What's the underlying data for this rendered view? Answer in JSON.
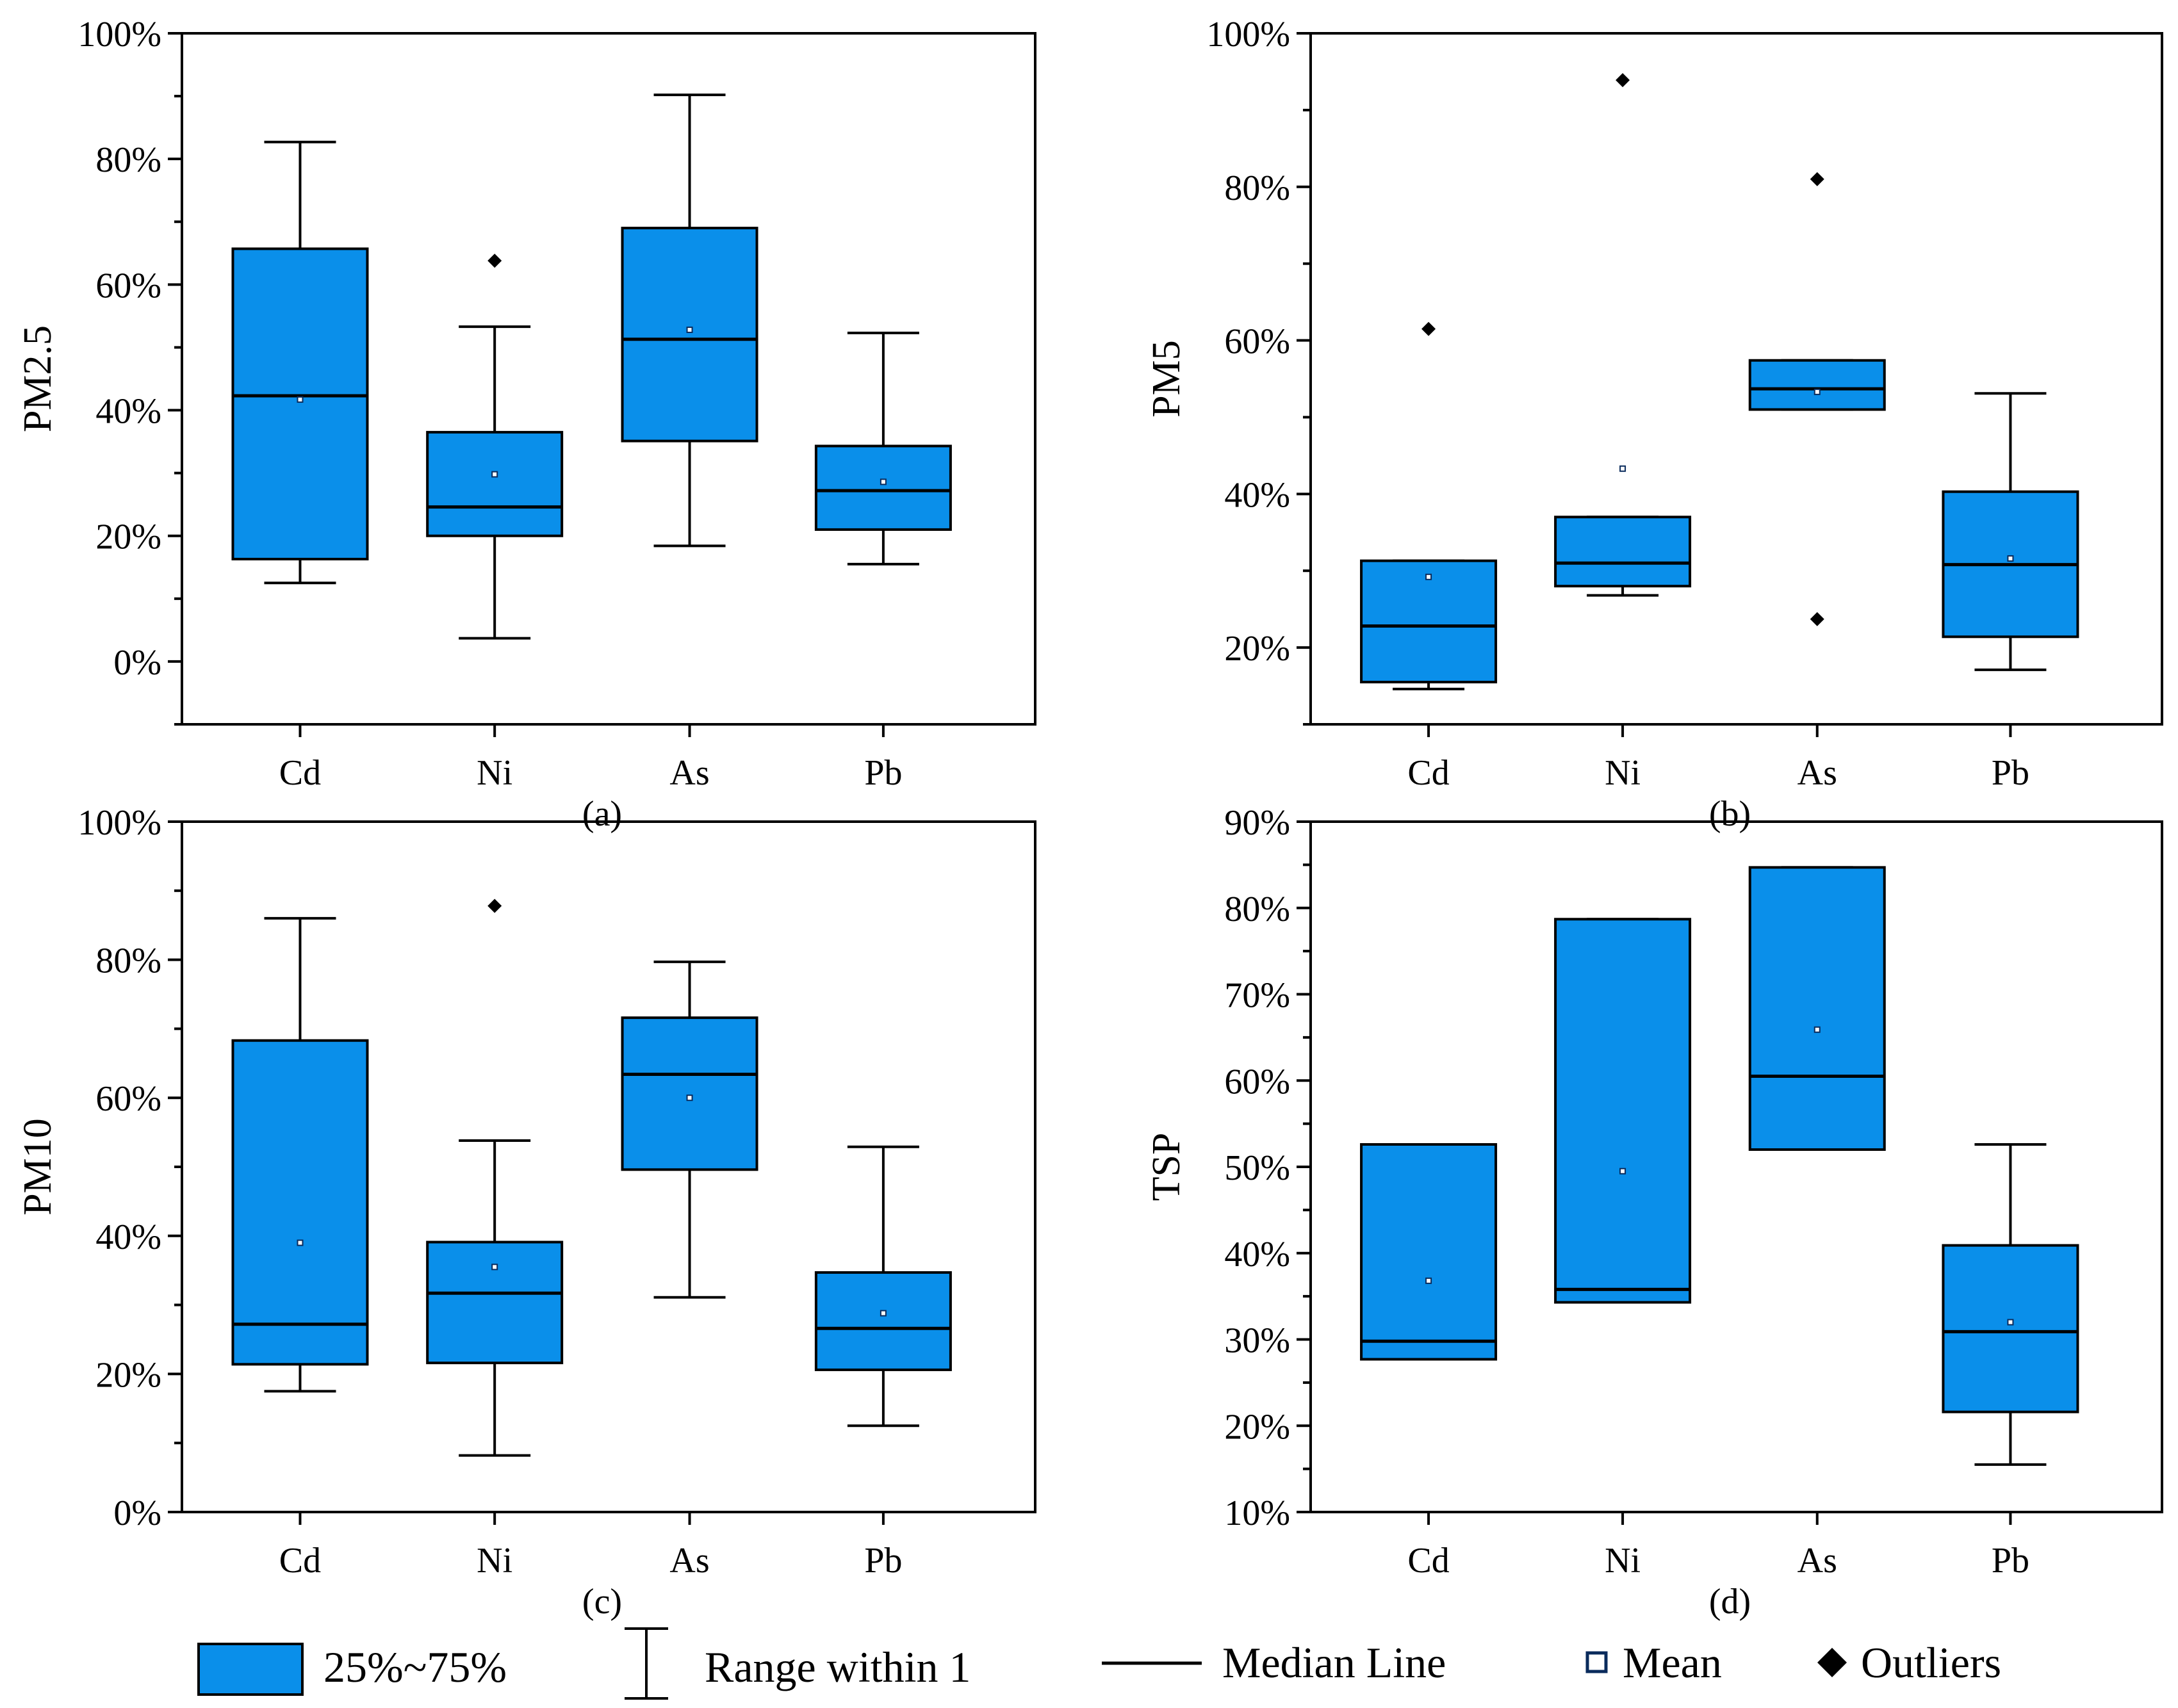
{
  "colors": {
    "box_fill": "#0A8FEA",
    "stroke": "#000000",
    "mean_marker": "#0A2B5C",
    "background": "#FFFFFF"
  },
  "legend": {
    "box_label": "25%~75%",
    "whisker_label": "Range within 1",
    "median_label": "Median Line",
    "mean_label": "Mean",
    "outlier_label": "Outliers"
  },
  "chart_data": [
    {
      "id": "a",
      "type": "box",
      "panel_label": "(a)",
      "ylabel": "PM2.5",
      "xlabel": "",
      "ylim": [
        -0.1,
        1.0
      ],
      "yticks": [
        0,
        0.2,
        0.4,
        0.6,
        0.8,
        1.0
      ],
      "ytick_labels": [
        "0%",
        "20%",
        "40%",
        "60%",
        "80%",
        "100%"
      ],
      "categories": [
        "Cd",
        "Ni",
        "As",
        "Pb"
      ],
      "boxes": [
        {
          "category": "Cd",
          "whisker_low": 0.125,
          "q1": 0.163,
          "median": 0.423,
          "q3": 0.657,
          "whisker_high": 0.827,
          "mean": 0.417,
          "outliers": []
        },
        {
          "category": "Ni",
          "whisker_low": 0.037,
          "q1": 0.2,
          "median": 0.246,
          "q3": 0.365,
          "whisker_high": 0.533,
          "mean": 0.298,
          "outliers": [
            0.638
          ]
        },
        {
          "category": "As",
          "whisker_low": 0.184,
          "q1": 0.351,
          "median": 0.513,
          "q3": 0.69,
          "whisker_high": 0.902,
          "mean": 0.528,
          "outliers": []
        },
        {
          "category": "Pb",
          "whisker_low": 0.155,
          "q1": 0.21,
          "median": 0.272,
          "q3": 0.343,
          "whisker_high": 0.523,
          "mean": 0.286,
          "outliers": []
        }
      ]
    },
    {
      "id": "b",
      "type": "box",
      "panel_label": "(b)",
      "ylabel": "PM5",
      "xlabel": "",
      "ylim": [
        0.1,
        1.0
      ],
      "yticks": [
        0.2,
        0.4,
        0.6,
        0.8,
        1.0
      ],
      "ytick_labels": [
        "20%",
        "40%",
        "60%",
        "80%",
        "100%"
      ],
      "categories": [
        "Cd",
        "Ni",
        "As",
        "Pb"
      ],
      "boxes": [
        {
          "category": "Cd",
          "whisker_low": 0.146,
          "q1": 0.155,
          "median": 0.228,
          "q3": 0.313,
          "whisker_high": 0.313,
          "mean": 0.292,
          "outliers": [
            0.615
          ]
        },
        {
          "category": "Ni",
          "whisker_low": 0.268,
          "q1": 0.28,
          "median": 0.31,
          "q3": 0.37,
          "whisker_high": 0.37,
          "mean": 0.433,
          "outliers": [
            0.939
          ]
        },
        {
          "category": "As",
          "whisker_low": 0.51,
          "q1": 0.51,
          "median": 0.537,
          "q3": 0.574,
          "whisker_high": 0.574,
          "mean": 0.533,
          "outliers": [
            0.81,
            0.237
          ]
        },
        {
          "category": "Pb",
          "whisker_low": 0.171,
          "q1": 0.214,
          "median": 0.308,
          "q3": 0.403,
          "whisker_high": 0.531,
          "mean": 0.316,
          "outliers": []
        }
      ]
    },
    {
      "id": "c",
      "type": "box",
      "panel_label": "(c)",
      "ylabel": "PM10",
      "xlabel": "",
      "ylim": [
        0.0,
        1.0
      ],
      "yticks": [
        0,
        0.2,
        0.4,
        0.6,
        0.8,
        1.0
      ],
      "ytick_labels": [
        "0%",
        "20%",
        "40%",
        "60%",
        "80%",
        "100%"
      ],
      "categories": [
        "Cd",
        "Ni",
        "As",
        "Pb"
      ],
      "boxes": [
        {
          "category": "Cd",
          "whisker_low": 0.175,
          "q1": 0.214,
          "median": 0.272,
          "q3": 0.683,
          "whisker_high": 0.86,
          "mean": 0.39,
          "outliers": []
        },
        {
          "category": "Ni",
          "whisker_low": 0.082,
          "q1": 0.216,
          "median": 0.317,
          "q3": 0.391,
          "whisker_high": 0.538,
          "mean": 0.355,
          "outliers": [
            0.878
          ]
        },
        {
          "category": "As",
          "whisker_low": 0.311,
          "q1": 0.496,
          "median": 0.634,
          "q3": 0.716,
          "whisker_high": 0.797,
          "mean": 0.6,
          "outliers": []
        },
        {
          "category": "Pb",
          "whisker_low": 0.125,
          "q1": 0.206,
          "median": 0.266,
          "q3": 0.347,
          "whisker_high": 0.529,
          "mean": 0.288,
          "outliers": []
        }
      ]
    },
    {
      "id": "d",
      "type": "box",
      "panel_label": "(d)",
      "ylabel": "TSP",
      "xlabel": "",
      "ylim": [
        0.1,
        0.9
      ],
      "yticks": [
        0.1,
        0.2,
        0.3,
        0.4,
        0.5,
        0.6,
        0.7,
        0.8,
        0.9
      ],
      "ytick_labels": [
        "10%",
        "20%",
        "30%",
        "40%",
        "50%",
        "60%",
        "70%",
        "80%",
        "90%"
      ],
      "categories": [
        "Cd",
        "Ni",
        "As",
        "Pb"
      ],
      "boxes": [
        {
          "category": "Cd",
          "whisker_low": 0.277,
          "q1": 0.277,
          "median": 0.298,
          "q3": 0.526,
          "whisker_high": 0.526,
          "mean": 0.368,
          "outliers": []
        },
        {
          "category": "Ni",
          "whisker_low": 0.343,
          "q1": 0.343,
          "median": 0.358,
          "q3": 0.787,
          "whisker_high": 0.787,
          "mean": 0.495,
          "outliers": []
        },
        {
          "category": "As",
          "whisker_low": 0.52,
          "q1": 0.52,
          "median": 0.605,
          "q3": 0.847,
          "whisker_high": 0.847,
          "mean": 0.659,
          "outliers": []
        },
        {
          "category": "Pb",
          "whisker_low": 0.155,
          "q1": 0.216,
          "median": 0.309,
          "q3": 0.409,
          "whisker_high": 0.526,
          "mean": 0.32,
          "outliers": []
        }
      ]
    }
  ]
}
